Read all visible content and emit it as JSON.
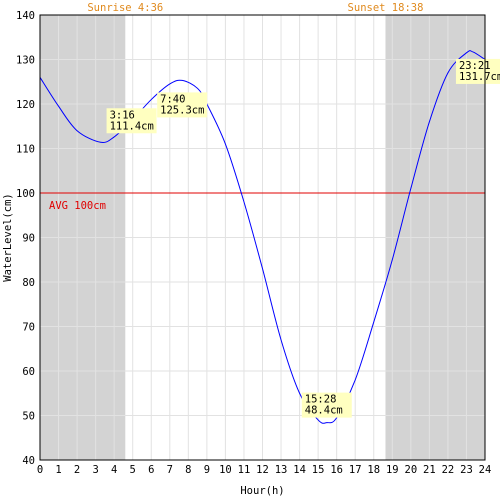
{
  "chart_data": {
    "type": "line",
    "sunrise_label": "Sunrise 4:36",
    "sunset_label": "Sunset 18:38",
    "night_bands": [
      [
        0,
        4.6
      ],
      [
        18.633,
        24
      ]
    ],
    "xlabel": "Hour(h)",
    "ylabel": "WaterLevel(cm)",
    "xlim": [
      0,
      24
    ],
    "ylim": [
      40,
      140
    ],
    "x_ticks": [
      0,
      1,
      2,
      3,
      4,
      5,
      6,
      7,
      8,
      9,
      10,
      11,
      12,
      13,
      14,
      15,
      16,
      17,
      18,
      19,
      20,
      21,
      22,
      23,
      24
    ],
    "y_ticks": [
      40,
      50,
      60,
      70,
      80,
      90,
      100,
      110,
      120,
      130,
      140
    ],
    "grid": true,
    "average": {
      "value": 100,
      "label": "AVG 100cm"
    },
    "series": [
      {
        "color": "#0000ff",
        "x": [
          0,
          1,
          2,
          3.267,
          4,
          5,
          6,
          7,
          7.667,
          8.5,
          9,
          10,
          11,
          12,
          13,
          14,
          15,
          15.467,
          16,
          17,
          18,
          19,
          20,
          21,
          22,
          23,
          23.35,
          24
        ],
        "y": [
          126,
          119.5,
          114,
          111.4,
          112.6,
          116.5,
          121,
          124.5,
          125.3,
          123.5,
          120,
          111,
          98,
          83,
          67,
          55,
          49,
          48.4,
          49.5,
          58,
          71,
          85,
          101,
          116,
          127,
          131.5,
          131.7,
          130
        ]
      }
    ],
    "annotations": [
      {
        "time": "3:16",
        "level": "111.4cm",
        "x": 3.267,
        "y": 111.4,
        "placement": "above-right"
      },
      {
        "time": "7:40",
        "level": "125.3cm",
        "x": 7.667,
        "y": 125.3,
        "placement": "below-right"
      },
      {
        "time": "15:28",
        "level": "48.4cm",
        "x": 15.467,
        "y": 48.4,
        "placement": "above"
      },
      {
        "time": "23:21",
        "level": "131.7cm",
        "x": 23.35,
        "y": 131.7,
        "placement": "below-left"
      }
    ]
  }
}
